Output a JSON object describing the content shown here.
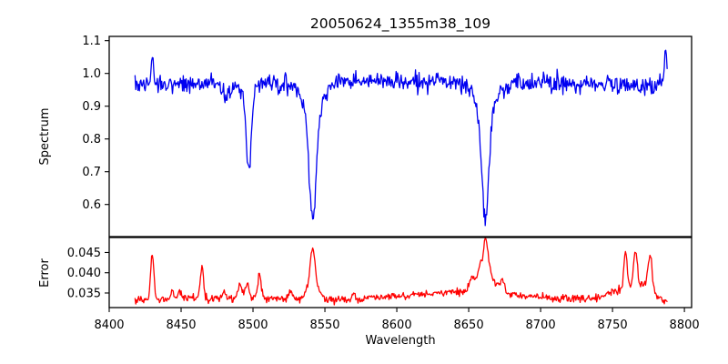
{
  "figure": {
    "title": "20050624_1355m38_109",
    "xlabel": "Wavelength",
    "background": "#ffffff",
    "spine_color": "#000000",
    "tick_color": "#000000"
  },
  "chart_data": [
    {
      "id": "spectrum-panel",
      "type": "line",
      "title": "20050624_1355m38_109",
      "ylabel": "Spectrum",
      "line_color": "#0000f0",
      "xlim": [
        8400,
        8805
      ],
      "ylim": [
        0.502,
        1.113
      ],
      "yticks": [
        0.6,
        0.7,
        0.8,
        0.9,
        1.0,
        1.1
      ],
      "ytick_labels": [
        "0.6",
        "0.7",
        "0.8",
        "0.9",
        "1.0",
        "1.1"
      ],
      "x_data_range": [
        8418,
        8788
      ],
      "x_step": 0.5,
      "noise_sigma": 0.013,
      "seed": 42,
      "continuum_points": [
        [
          8418,
          0.965
        ],
        [
          8450,
          0.968
        ],
        [
          8480,
          0.97
        ],
        [
          8520,
          0.972
        ],
        [
          8560,
          0.975
        ],
        [
          8600,
          0.975
        ],
        [
          8640,
          0.973
        ],
        [
          8680,
          0.972
        ],
        [
          8700,
          0.97
        ],
        [
          8730,
          0.968
        ],
        [
          8760,
          0.962
        ],
        [
          8775,
          0.958
        ],
        [
          8788,
          0.97
        ]
      ],
      "absorption_lines": [
        {
          "center": 8482.0,
          "depth": 0.05,
          "width": 2.0,
          "wing_depth": 0.0,
          "wing_width": 4.0,
          "min_value": 0.93
        },
        {
          "center": 8497.0,
          "depth": 0.22,
          "width": 1.8,
          "wing_depth": 0.04,
          "wing_width": 4.0,
          "min_value": 0.71
        },
        {
          "center": 8541.5,
          "depth": 0.33,
          "width": 2.4,
          "wing_depth": 0.095,
          "wing_width": 7.0,
          "min_value": 0.545
        },
        {
          "center": 8661.5,
          "depth": 0.32,
          "width": 2.4,
          "wing_depth": 0.095,
          "wing_width": 7.0,
          "min_value": 0.555
        }
      ],
      "emission_spikes": [
        {
          "center": 8430.0,
          "amp": 0.09,
          "width": 0.8,
          "peak_value": 1.09
        },
        {
          "center": 8787.0,
          "amp": 0.11,
          "width": 0.9,
          "peak_value": 1.085
        }
      ]
    },
    {
      "id": "error-panel",
      "type": "line",
      "ylabel": "Error",
      "line_color": "#ff0000",
      "xlim": [
        8400,
        8805
      ],
      "ylim": [
        0.0314,
        0.0487
      ],
      "yticks": [
        0.035,
        0.04,
        0.045
      ],
      "ytick_labels": [
        "0.035",
        "0.040",
        "0.045"
      ],
      "x_data_range": [
        8418,
        8788
      ],
      "x_step": 0.5,
      "noise_sigma": 0.00045,
      "seed": 7,
      "baseline_points": [
        [
          8418,
          0.0334
        ],
        [
          8460,
          0.0336
        ],
        [
          8520,
          0.0337
        ],
        [
          8555,
          0.0333
        ],
        [
          8575,
          0.0333
        ],
        [
          8600,
          0.0343
        ],
        [
          8625,
          0.0348
        ],
        [
          8645,
          0.0352
        ],
        [
          8658,
          0.0358
        ],
        [
          8672,
          0.0352
        ],
        [
          8690,
          0.0342
        ],
        [
          8705,
          0.0337
        ],
        [
          8740,
          0.0337
        ],
        [
          8752,
          0.0355
        ],
        [
          8762,
          0.0368
        ],
        [
          8772,
          0.0368
        ],
        [
          8780,
          0.0345
        ],
        [
          8788,
          0.0326
        ]
      ],
      "spikes": [
        {
          "center": 8430.0,
          "amp": 0.0108,
          "width": 1.1,
          "peak_value": 0.0445
        },
        {
          "center": 8444.0,
          "amp": 0.002,
          "width": 0.9
        },
        {
          "center": 8449.0,
          "amp": 0.0022,
          "width": 0.9
        },
        {
          "center": 8464.5,
          "amp": 0.008,
          "width": 1.1,
          "peak_value": 0.042
        },
        {
          "center": 8480.0,
          "amp": 0.0015,
          "width": 1.2
        },
        {
          "center": 8491.0,
          "amp": 0.0032,
          "width": 1.4
        },
        {
          "center": 8496.0,
          "amp": 0.004,
          "width": 1.3
        },
        {
          "center": 8504.5,
          "amp": 0.0062,
          "width": 1.1,
          "peak_value": 0.0404
        },
        {
          "center": 8526.0,
          "amp": 0.0018,
          "width": 1.2
        },
        {
          "center": 8541.5,
          "amp": 0.008,
          "width": 1.6,
          "peak_value": 0.046
        },
        {
          "center": 8541.5,
          "amp": 0.0046,
          "width": 3.5
        },
        {
          "center": 8570.0,
          "amp": 0.0018,
          "width": 1.0
        },
        {
          "center": 8652.0,
          "amp": 0.0028,
          "width": 1.5
        },
        {
          "center": 8661.9,
          "amp": 0.005,
          "width": 1.2,
          "peak_value": 0.0485
        },
        {
          "center": 8661.0,
          "amp": 0.008,
          "width": 4.2
        },
        {
          "center": 8673.0,
          "amp": 0.003,
          "width": 1.8
        },
        {
          "center": 8759.0,
          "amp": 0.0085,
          "width": 1.1,
          "peak_value": 0.0445
        },
        {
          "center": 8766.0,
          "amp": 0.009,
          "width": 1.2,
          "peak_value": 0.0455
        },
        {
          "center": 8776.0,
          "amp": 0.0085,
          "width": 1.5,
          "peak_value": 0.0455
        }
      ]
    }
  ],
  "x_axis": {
    "label": "Wavelength",
    "ticks": [
      8400,
      8450,
      8500,
      8550,
      8600,
      8650,
      8700,
      8750,
      8800
    ],
    "tick_labels": [
      "8400",
      "8450",
      "8500",
      "8550",
      "8600",
      "8650",
      "8700",
      "8750",
      "8800"
    ]
  }
}
